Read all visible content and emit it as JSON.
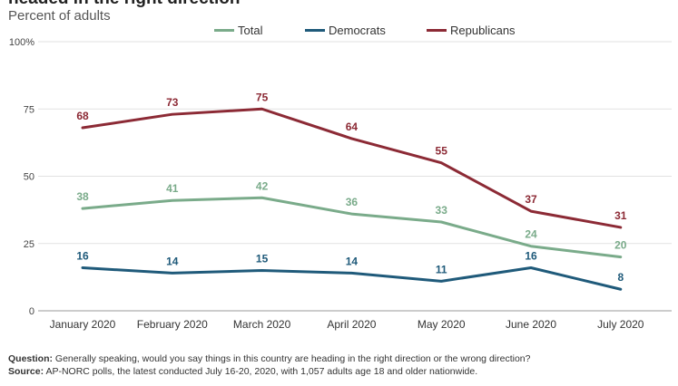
{
  "title": "headed in the right direction",
  "subtitle": "Percent of adults",
  "notes": {
    "question_label": "Question:",
    "question_text": "Generally speaking, would you say things in this country are heading in the right direction or the wrong direction?",
    "source_label": "Source:",
    "source_text": "AP-NORC polls, the latest conducted July 16-20, 2020, with 1,057 adults age 18 and older nationwide."
  },
  "chart_data": {
    "type": "line",
    "categories": [
      "January 2020",
      "February 2020",
      "March 2020",
      "April 2020",
      "May 2020",
      "June 2020",
      "July 2020"
    ],
    "series": [
      {
        "name": "Total",
        "color": "#7aab8a",
        "values": [
          38,
          41,
          42,
          36,
          33,
          24,
          20
        ]
      },
      {
        "name": "Democrats",
        "color": "#1f5a7a",
        "values": [
          16,
          14,
          15,
          14,
          11,
          16,
          8
        ]
      },
      {
        "name": "Republicans",
        "color": "#8c2a35",
        "values": [
          68,
          73,
          75,
          64,
          55,
          37,
          31
        ]
      }
    ],
    "yticks": [
      "0",
      "25",
      "50",
      "75",
      "100%"
    ],
    "ylim": [
      0,
      100
    ],
    "grid": true,
    "legend_position": "top"
  }
}
